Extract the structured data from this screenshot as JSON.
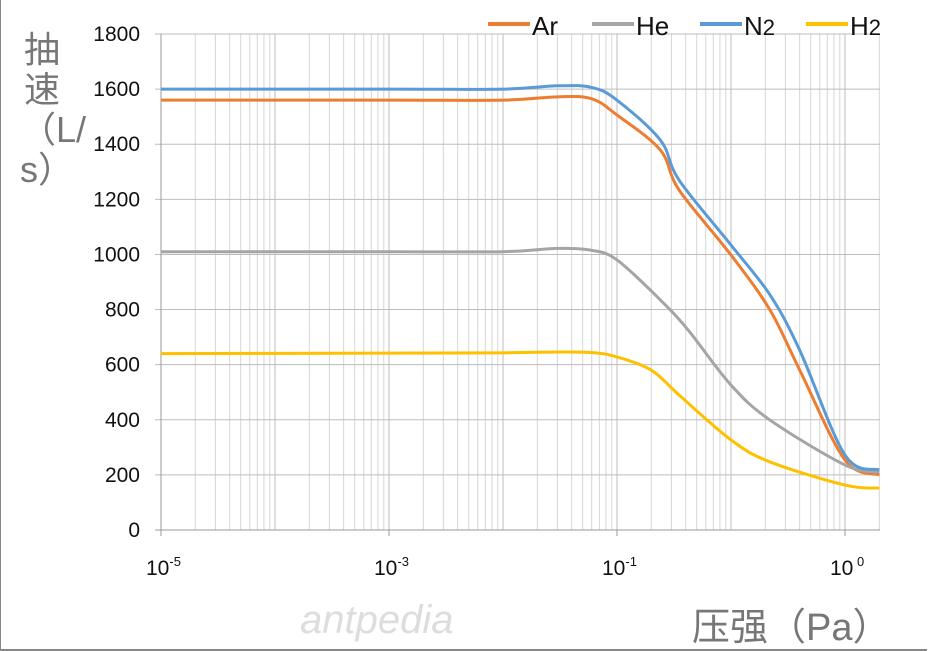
{
  "chart_data": {
    "type": "line",
    "title": "",
    "xlabel": "压强（Pa）",
    "ylabel": "抽速（L/s）",
    "xscale": "log",
    "xlim": [
      1e-05,
      20
    ],
    "ylim": [
      0,
      1800
    ],
    "yticks": [
      0,
      200,
      400,
      600,
      800,
      1000,
      1200,
      1400,
      1600,
      1800
    ],
    "xticks": [
      {
        "value": 1e-05,
        "base": "10",
        "exp": "-5"
      },
      {
        "value": 0.001,
        "base": "10",
        "exp": "-3"
      },
      {
        "value": 0.1,
        "base": "10",
        "exp": "-1"
      },
      {
        "value": 10,
        "base": "10",
        "exp": " 0"
      }
    ],
    "grid": true,
    "legend_position": "top-right",
    "series": [
      {
        "name": "Ar",
        "color": "#ED7D31",
        "x": [
          1e-05,
          0.001,
          0.01,
          0.03,
          0.06,
          0.1,
          0.24,
          0.35,
          1,
          2.2,
          4,
          10,
          20
        ],
        "y": [
          1560,
          1560,
          1560,
          1572,
          1565,
          1506,
          1379,
          1234,
          998,
          798,
          581,
          254,
          200
        ]
      },
      {
        "name": "He",
        "color": "#A5A5A5",
        "x": [
          1e-05,
          0.001,
          0.01,
          0.03,
          0.06,
          0.1,
          0.24,
          0.42,
          1,
          2.2,
          10,
          20
        ],
        "y": [
          1010,
          1010,
          1010,
          1022,
          1015,
          980,
          835,
          726,
          526,
          399,
          236,
          210
        ]
      },
      {
        "name": "N2",
        "label_main": "N",
        "label_sub": "2",
        "color": "#5B9BD5",
        "x": [
          1e-05,
          0.001,
          0.01,
          0.03,
          0.06,
          0.1,
          0.24,
          0.35,
          1,
          2.2,
          4,
          10,
          20
        ],
        "y": [
          1600,
          1600,
          1600,
          1612,
          1606,
          1560,
          1415,
          1270,
          1034,
          853,
          653,
          272,
          218
        ]
      },
      {
        "name": "H2",
        "label_main": "H",
        "label_sub": "2",
        "color": "#FFC000",
        "x": [
          1e-05,
          0.001,
          0.01,
          0.03,
          0.06,
          0.1,
          0.2,
          0.35,
          1,
          2.2,
          10,
          20
        ],
        "y": [
          640,
          642,
          643,
          646,
          644,
          628,
          580,
          490,
          327,
          247,
          163,
          152
        ]
      }
    ]
  },
  "legend": [
    {
      "main": "Ar",
      "sub": ""
    },
    {
      "main": "He",
      "sub": ""
    },
    {
      "main": "N",
      "sub": "2"
    },
    {
      "main": "H",
      "sub": "2"
    }
  ],
  "watermark": "antpedia"
}
